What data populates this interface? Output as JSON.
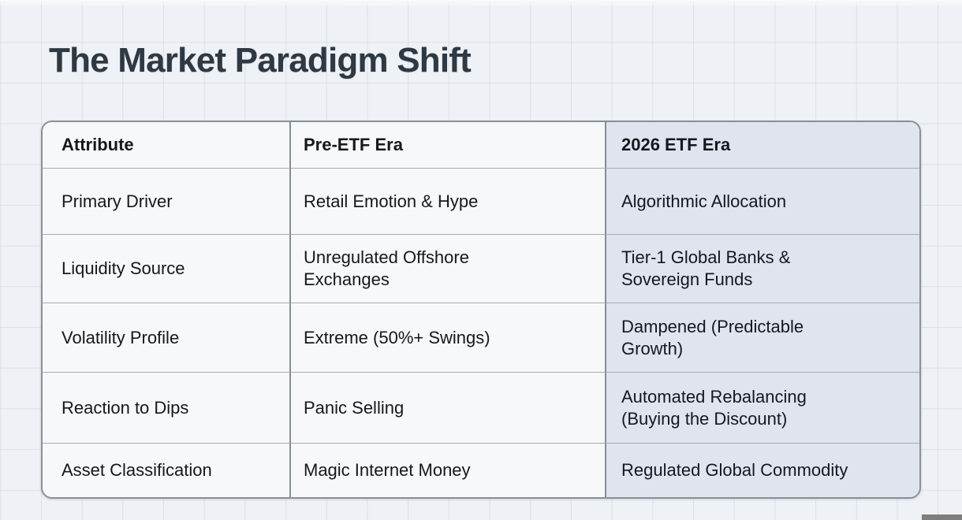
{
  "title": "The Market Paradigm Shift",
  "table": {
    "columns": [
      "Attribute",
      "Pre-ETF Era",
      "2026 ETF Era"
    ],
    "rows": [
      {
        "attribute": "Primary Driver",
        "pre_etf": "Retail Emotion & Hype",
        "etf_2026": "Algorithmic Allocation"
      },
      {
        "attribute": "Liquidity Source",
        "pre_etf": "Unregulated Offshore\nExchanges",
        "etf_2026": "Tier-1 Global Banks &\nSovereign Funds"
      },
      {
        "attribute": "Volatility Profile",
        "pre_etf": "Extreme (50%+ Swings)",
        "etf_2026": "Dampened (Predictable\nGrowth)"
      },
      {
        "attribute": "Reaction to Dips",
        "pre_etf": "Panic Selling",
        "etf_2026": "Automated Rebalancing\n(Buying the Discount)"
      },
      {
        "attribute": "Asset Classification",
        "pre_etf": "Magic Internet Money",
        "etf_2026": "Regulated Global Commodity"
      }
    ]
  },
  "colors": {
    "background": "#eef1f5",
    "grid_line": "#dde2e8",
    "title_text": "#2e3943",
    "body_text": "#15181c",
    "cell_background": "#f6f8fa",
    "highlight_column_background": "#dfe4ef",
    "table_border": "#8a9098",
    "progress_remnant": "#7e7e7e"
  }
}
